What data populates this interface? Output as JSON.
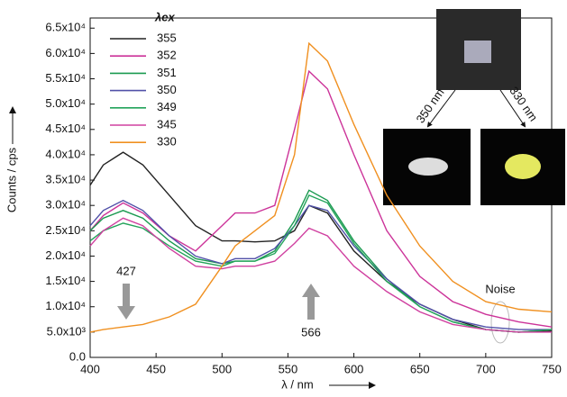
{
  "chart_data": {
    "type": "line",
    "xlabel": "λ / nm",
    "ylabel": "Counts / cps",
    "legend_title": "λex",
    "x": [
      400,
      410,
      425,
      440,
      460,
      480,
      500,
      510,
      525,
      540,
      555,
      566,
      580,
      600,
      625,
      650,
      675,
      700,
      725,
      750
    ],
    "series": [
      {
        "name": "355",
        "color": "#222222",
        "values": [
          34000,
          38000,
          40500,
          38000,
          32000,
          26000,
          23000,
          23000,
          22800,
          23000,
          25000,
          30000,
          28500,
          21000,
          15000,
          10500,
          7500,
          5500,
          5000,
          5200
        ]
      },
      {
        "name": "352",
        "color": "#cc3399",
        "values": [
          25000,
          28000,
          30500,
          28500,
          24000,
          21000,
          26000,
          28500,
          28500,
          30000,
          45000,
          56500,
          53000,
          40000,
          25000,
          16000,
          11000,
          8500,
          7000,
          6000
        ]
      },
      {
        "name": "351",
        "color": "#1a9a50",
        "values": [
          25000,
          27500,
          29000,
          27500,
          23000,
          19500,
          18500,
          19000,
          19000,
          21000,
          27000,
          33000,
          31000,
          23000,
          15500,
          10000,
          7000,
          5500,
          5000,
          5500
        ]
      },
      {
        "name": "350",
        "color": "#5050a8",
        "values": [
          26000,
          29000,
          31000,
          29000,
          24000,
          20000,
          18500,
          19500,
          19500,
          21500,
          26000,
          30000,
          29000,
          22000,
          15500,
          10500,
          7500,
          6000,
          5500,
          5500
        ]
      },
      {
        "name": "349",
        "color": "#23a35a",
        "values": [
          23000,
          25000,
          26500,
          25500,
          22000,
          19000,
          18000,
          19000,
          19000,
          20500,
          26000,
          32000,
          30500,
          22500,
          15000,
          10000,
          7000,
          5500,
          5000,
          5500
        ]
      },
      {
        "name": "345",
        "color": "#d040a0",
        "values": [
          22000,
          25000,
          27500,
          26000,
          21500,
          18000,
          17500,
          18000,
          18000,
          19000,
          22500,
          25500,
          24000,
          18000,
          13000,
          9000,
          6500,
          5500,
          5000,
          5000
        ]
      },
      {
        "name": "330",
        "color": "#f09020",
        "values": [
          5000,
          5500,
          6000,
          6500,
          8000,
          10500,
          18000,
          22000,
          25000,
          28000,
          40000,
          62000,
          58500,
          46000,
          32000,
          22000,
          15000,
          11000,
          9500,
          9000
        ]
      }
    ],
    "xlim": [
      400,
      750
    ],
    "xticks": [
      400,
      450,
      500,
      550,
      600,
      650,
      700,
      750
    ],
    "ylim": [
      0,
      67000
    ],
    "yticks": [
      {
        "value": 0,
        "label": "0.0"
      },
      {
        "value": 5000,
        "label": "5.0x10³"
      },
      {
        "value": 10000,
        "label": "1.0x10⁴"
      },
      {
        "value": 15000,
        "label": "1.5x10⁴"
      },
      {
        "value": 20000,
        "label": "2.0x10⁴"
      },
      {
        "value": 25000,
        "label": "2.5x10⁴"
      },
      {
        "value": 30000,
        "label": "3.0x10⁴"
      },
      {
        "value": 35000,
        "label": "3.5x10⁴"
      },
      {
        "value": 40000,
        "label": "4.0x10⁴"
      },
      {
        "value": 45000,
        "label": "4.5x10⁴"
      },
      {
        "value": 50000,
        "label": "5.0x10⁴"
      },
      {
        "value": 55000,
        "label": "5.5x10⁴"
      },
      {
        "value": 60000,
        "label": "6.0x10⁴"
      },
      {
        "value": 65000,
        "label": "6.5x10⁴"
      }
    ],
    "annotations": [
      "427",
      "566",
      "Noise",
      "350 nm",
      "330 nm"
    ]
  }
}
